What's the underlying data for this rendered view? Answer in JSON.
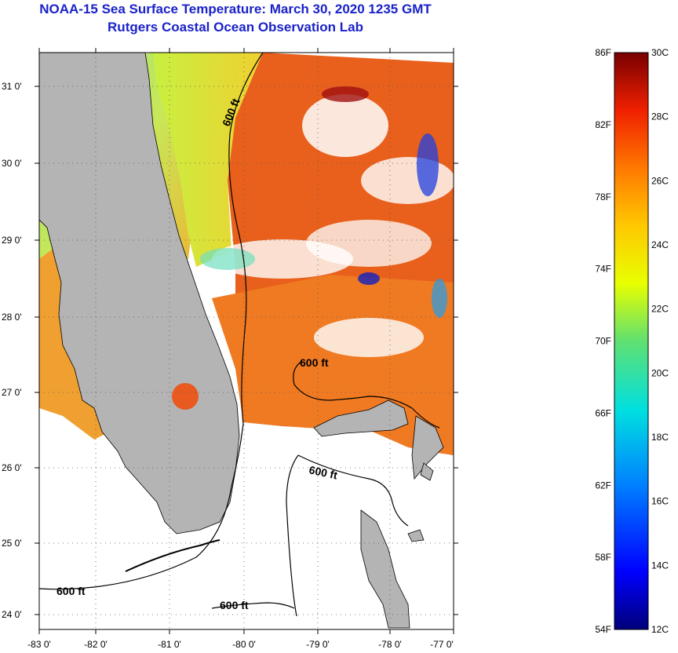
{
  "title": {
    "line1": "NOAA-15 Sea Surface Temperature:  March 30, 2020 1235 GMT",
    "line2": "Rutgers Coastal Ocean Observation Lab"
  },
  "map": {
    "lon_ticks": [
      "-83 0'",
      "-82 0'",
      "-81 0'",
      "-80 0'",
      "-79 0'",
      "-78 0'",
      "-77 0'"
    ],
    "lat_ticks": [
      "31 0'",
      "30 0'",
      "29 0'",
      "28 0'",
      "27 0'",
      "26 0'",
      "25 0'",
      "24 0'"
    ],
    "contour_label": "600 ft",
    "colors": {
      "land": "#b4b4b4",
      "coast": "#000000",
      "gulf_warm": "#f08c28",
      "atlantic_warm": "#e8601c"
    }
  },
  "colorbar": {
    "fahrenheit_labels": [
      "86F",
      "82F",
      "78F",
      "74F",
      "70F",
      "66F",
      "62F",
      "58F",
      "54F"
    ],
    "celsius_labels": [
      "30C",
      "28C",
      "26C",
      "24C",
      "22C",
      "20C",
      "18C",
      "16C",
      "14C",
      "12C"
    ],
    "range_c": [
      12,
      30
    ],
    "range_f": [
      54,
      86
    ]
  }
}
